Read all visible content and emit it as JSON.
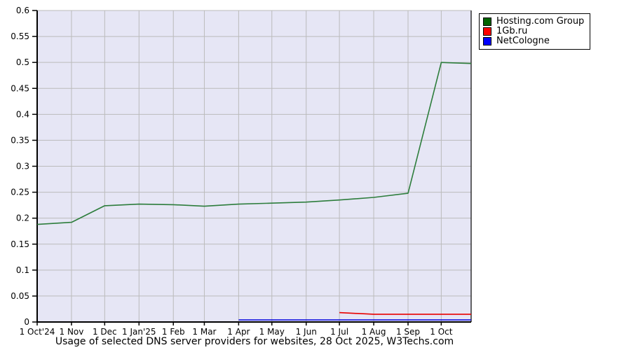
{
  "chart_data": {
    "type": "line",
    "title": "Usage of selected DNS server providers for websites, 28 Oct 2025, W3Techs.com",
    "xlabel": "",
    "ylabel": "",
    "ylim": [
      0,
      0.6
    ],
    "x_range_days": [
      0,
      392
    ],
    "grid": true,
    "legend_position": "top-right-outside",
    "y_ticks": [
      0,
      0.05,
      0.1,
      0.15,
      0.2,
      0.25,
      0.3,
      0.35,
      0.4,
      0.45,
      0.5,
      0.55,
      0.6
    ],
    "x_ticks": [
      {
        "label": "1 Oct'24",
        "day": 0
      },
      {
        "label": "1 Nov",
        "day": 31
      },
      {
        "label": "1 Dec",
        "day": 61
      },
      {
        "label": "1 Jan'25",
        "day": 92
      },
      {
        "label": "1 Feb",
        "day": 123
      },
      {
        "label": "1 Mar",
        "day": 151
      },
      {
        "label": "1 Apr",
        "day": 182
      },
      {
        "label": "1 May",
        "day": 212
      },
      {
        "label": "1 Jun",
        "day": 243
      },
      {
        "label": "1 Jul",
        "day": 273
      },
      {
        "label": "1 Aug",
        "day": 304
      },
      {
        "label": "1 Sep",
        "day": 335
      },
      {
        "label": "1 Oct",
        "day": 365
      }
    ],
    "series": [
      {
        "name": "Hosting.com Group",
        "color": "#2d7d3c",
        "swatch": "#006400",
        "points": [
          [
            0,
            0.188
          ],
          [
            31,
            0.192
          ],
          [
            61,
            0.224
          ],
          [
            92,
            0.227
          ],
          [
            123,
            0.226
          ],
          [
            151,
            0.223
          ],
          [
            182,
            0.227
          ],
          [
            212,
            0.229
          ],
          [
            243,
            0.231
          ],
          [
            273,
            0.235
          ],
          [
            304,
            0.24
          ],
          [
            335,
            0.248
          ],
          [
            365,
            0.5
          ],
          [
            392,
            0.498
          ]
        ]
      },
      {
        "name": "1Gb.ru",
        "color": "#e80000",
        "swatch": "#ff0000",
        "points": [
          [
            273,
            0.018
          ],
          [
            304,
            0.015
          ],
          [
            335,
            0.015
          ],
          [
            365,
            0.015
          ],
          [
            392,
            0.015
          ]
        ]
      },
      {
        "name": "NetCologne",
        "color": "#0000dd",
        "swatch": "#0000ff",
        "points": [
          [
            182,
            0.004
          ],
          [
            212,
            0.004
          ],
          [
            243,
            0.004
          ],
          [
            273,
            0.004
          ],
          [
            304,
            0.004
          ],
          [
            335,
            0.004
          ],
          [
            365,
            0.004
          ],
          [
            392,
            0.004
          ]
        ]
      }
    ],
    "colors": {
      "page_bg": "#ffffff",
      "plot_bg": "#e6e6f5",
      "grid": "#bbbbbb",
      "axis": "#000000",
      "text": "#000000"
    }
  }
}
